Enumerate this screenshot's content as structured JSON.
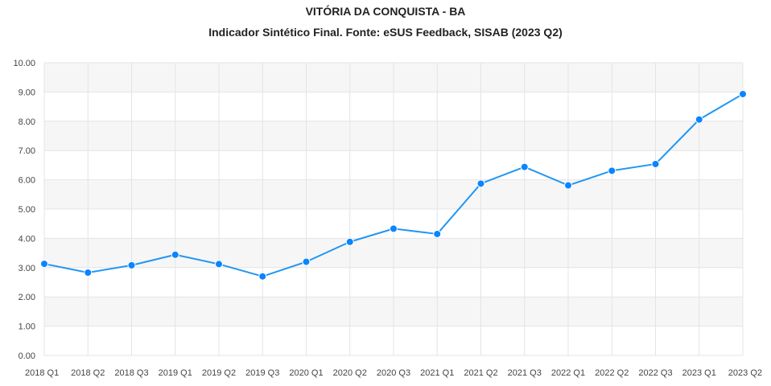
{
  "chart_data": {
    "type": "line",
    "title": "VITÓRIA DA CONQUISTA - BA",
    "subtitle": "Indicador Sintético Final. Fonte: eSUS Feedback, SISAB (2023 Q2)",
    "xlabel": "",
    "ylabel": "",
    "categories": [
      "2018 Q1",
      "2018 Q2",
      "2018 Q3",
      "2019 Q1",
      "2019 Q2",
      "2019 Q3",
      "2020 Q1",
      "2020 Q2",
      "2020 Q3",
      "2021 Q1",
      "2021 Q2",
      "2021 Q3",
      "2022 Q1",
      "2022 Q2",
      "2022 Q3",
      "2023 Q1",
      "2023 Q2"
    ],
    "series": [
      {
        "values": [
          3.13,
          2.83,
          3.08,
          3.44,
          3.12,
          2.7,
          3.2,
          3.88,
          4.33,
          4.15,
          5.87,
          6.44,
          5.81,
          6.31,
          6.54,
          8.06,
          8.93
        ]
      }
    ],
    "ylim": [
      0,
      10
    ],
    "yticks": [
      "0.00",
      "1.00",
      "2.00",
      "3.00",
      "4.00",
      "5.00",
      "6.00",
      "7.00",
      "8.00",
      "9.00",
      "10.00"
    ],
    "grid": true,
    "line_color": "#2196f3",
    "point_color": "#0a84ff",
    "band_color": "#f6f6f6",
    "grid_color": "#e4e4e4"
  }
}
